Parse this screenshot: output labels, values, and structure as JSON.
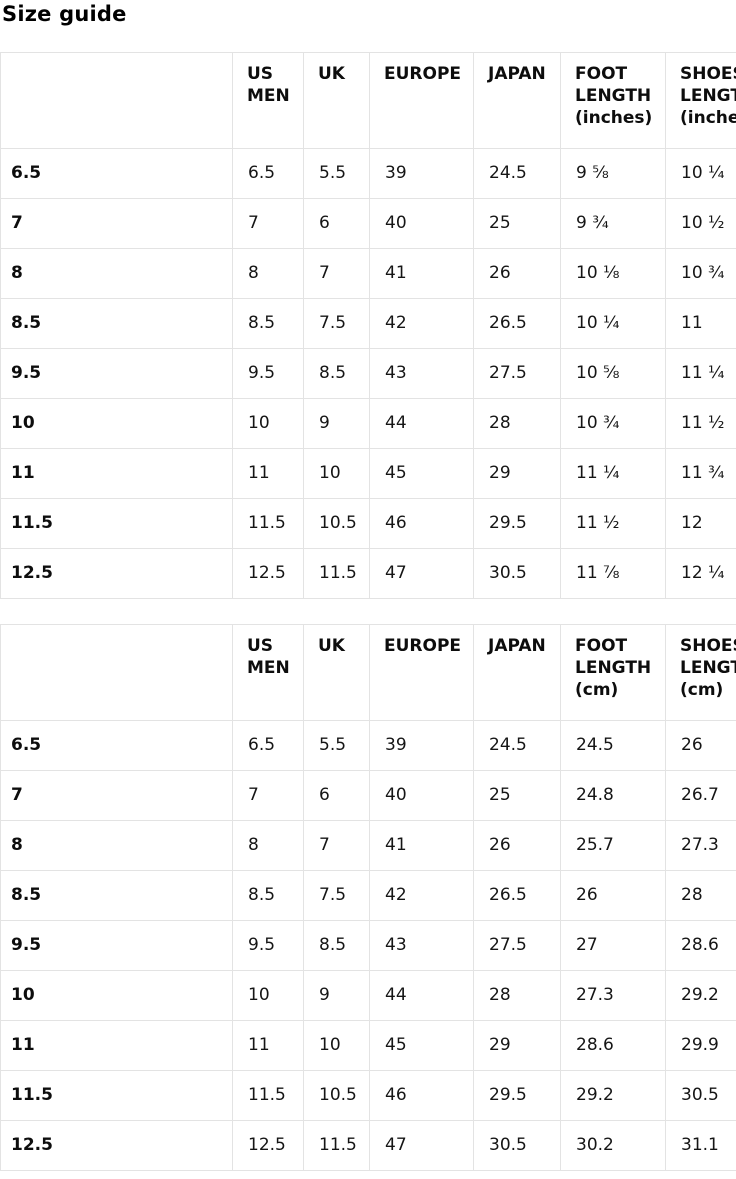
{
  "title": "Size guide",
  "text_color": "#111111",
  "border_color": "#e3e3e3",
  "background_color": "#ffffff",
  "tables": [
    {
      "name": "sizes-inches",
      "headers": [
        "",
        "US MEN",
        "UK",
        "EUROPE",
        "JAPAN",
        "FOOT LENGTH (inches)",
        "SHOES LENGTH (inches)"
      ],
      "rows": [
        [
          "6.5",
          "6.5",
          "5.5",
          "39",
          "24.5",
          "9 ⅝",
          "10 ¼"
        ],
        [
          "7",
          "7",
          "6",
          "40",
          "25",
          "9 ¾",
          "10 ½"
        ],
        [
          "8",
          "8",
          "7",
          "41",
          "26",
          "10 ⅛",
          "10 ¾"
        ],
        [
          "8.5",
          "8.5",
          "7.5",
          "42",
          "26.5",
          "10 ¼",
          "11"
        ],
        [
          "9.5",
          "9.5",
          "8.5",
          "43",
          "27.5",
          "10 ⅝",
          "11 ¼"
        ],
        [
          "10",
          "10",
          "9",
          "44",
          "28",
          "10 ¾",
          "11 ½"
        ],
        [
          "11",
          "11",
          "10",
          "45",
          "29",
          "11 ¼",
          "11 ¾"
        ],
        [
          "11.5",
          "11.5",
          "10.5",
          "46",
          "29.5",
          "11 ½",
          "12"
        ],
        [
          "12.5",
          "12.5",
          "11.5",
          "47",
          "30.5",
          "11 ⅞",
          "12 ¼"
        ]
      ]
    },
    {
      "name": "sizes-cm",
      "headers": [
        "",
        "US MEN",
        "UK",
        "EUROPE",
        "JAPAN",
        "FOOT LENGTH (cm)",
        "SHOES LENGTH (cm)"
      ],
      "rows": [
        [
          "6.5",
          "6.5",
          "5.5",
          "39",
          "24.5",
          "24.5",
          "26"
        ],
        [
          "7",
          "7",
          "6",
          "40",
          "25",
          "24.8",
          "26.7"
        ],
        [
          "8",
          "8",
          "7",
          "41",
          "26",
          "25.7",
          "27.3"
        ],
        [
          "8.5",
          "8.5",
          "7.5",
          "42",
          "26.5",
          "26",
          "28"
        ],
        [
          "9.5",
          "9.5",
          "8.5",
          "43",
          "27.5",
          "27",
          "28.6"
        ],
        [
          "10",
          "10",
          "9",
          "44",
          "28",
          "27.3",
          "29.2"
        ],
        [
          "11",
          "11",
          "10",
          "45",
          "29",
          "28.6",
          "29.9"
        ],
        [
          "11.5",
          "11.5",
          "10.5",
          "46",
          "29.5",
          "29.2",
          "30.5"
        ],
        [
          "12.5",
          "12.5",
          "11.5",
          "47",
          "30.5",
          "30.2",
          "31.1"
        ]
      ]
    }
  ]
}
